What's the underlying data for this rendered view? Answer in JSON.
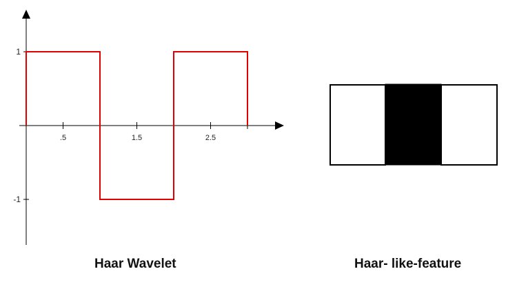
{
  "wavelet": {
    "caption": "Haar Wavelet",
    "line_color": "#e00000",
    "axis_color": "#000000",
    "x_ticks": [
      {
        "label": ".5"
      },
      {
        "label": "1.5"
      },
      {
        "label": "2.5"
      }
    ],
    "y_ticks": [
      {
        "label": "1"
      },
      {
        "label": "-1"
      }
    ],
    "signal": {
      "x": [
        0,
        0,
        1,
        1,
        2,
        2,
        3,
        3
      ],
      "y": [
        0,
        1,
        1,
        -1,
        -1,
        1,
        1,
        0
      ]
    }
  },
  "feature": {
    "caption": "Haar- like-feature",
    "segments": [
      "white",
      "black",
      "white"
    ],
    "colors": {
      "white": "#ffffff",
      "black": "#000000",
      "border": "#000000"
    }
  }
}
